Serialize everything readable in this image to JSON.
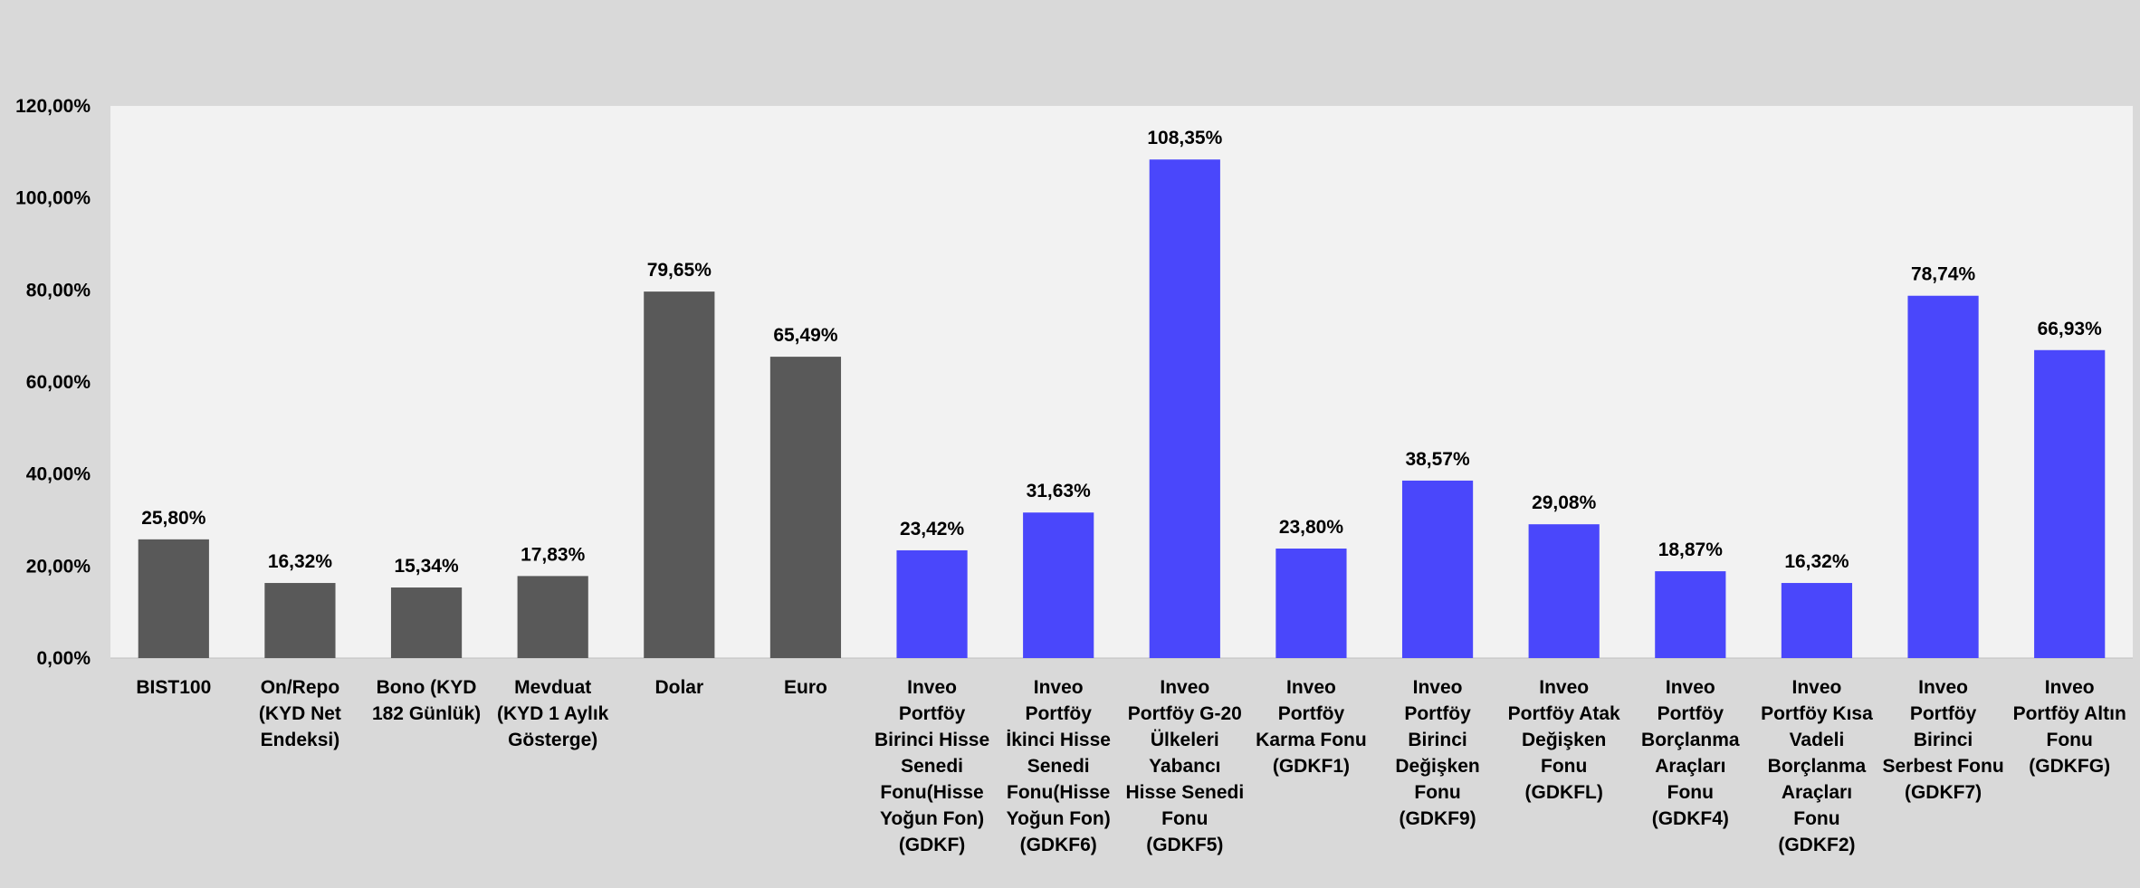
{
  "chart_data": {
    "type": "bar",
    "categories": [
      [
        "BIST100"
      ],
      [
        "On/Repo",
        "(KYD Net",
        "Endeksi)"
      ],
      [
        "Bono (KYD",
        "182 Günlük)"
      ],
      [
        "Mevduat",
        "(KYD 1 Aylık",
        "Gösterge)"
      ],
      [
        "Dolar"
      ],
      [
        "Euro"
      ],
      [
        "Inveo",
        "Portföy",
        "Birinci Hisse",
        "Senedi",
        "Fonu(Hisse",
        "Yoğun Fon)",
        "(GDKF)"
      ],
      [
        "Inveo",
        "Portföy",
        "İkinci Hisse",
        "Senedi",
        "Fonu(Hisse",
        "Yoğun Fon)",
        "(GDKF6)"
      ],
      [
        "Inveo",
        "Portföy G-20",
        "Ülkeleri",
        "Yabancı",
        "Hisse Senedi",
        "Fonu",
        "(GDKF5)"
      ],
      [
        "Inveo",
        "Portföy",
        "Karma Fonu",
        "(GDKF1)"
      ],
      [
        "Inveo",
        "Portföy",
        "Birinci",
        "Değişken",
        "Fonu",
        "(GDKF9)"
      ],
      [
        "Inveo",
        "Portföy Atak",
        "Değişken",
        "Fonu",
        "(GDKFL)"
      ],
      [
        "Inveo",
        "Portföy",
        "Borçlanma",
        "Araçları",
        "Fonu",
        "(GDKF4)"
      ],
      [
        "Inveo",
        "Portföy Kısa",
        "Vadeli",
        "Borçlanma",
        "Araçları",
        "Fonu",
        "(GDKF2)"
      ],
      [
        "Inveo",
        "Portföy",
        "Birinci",
        "Serbest Fonu",
        "(GDKF7)"
      ],
      [
        "Inveo",
        "Portföy Altın",
        "Fonu",
        "(GDKFG)"
      ]
    ],
    "values": [
      25.8,
      16.32,
      15.34,
      17.83,
      79.65,
      65.49,
      23.42,
      31.63,
      108.35,
      23.8,
      38.57,
      29.08,
      18.87,
      16.32,
      78.74,
      66.93
    ],
    "value_labels": [
      "25,80%",
      "16,32%",
      "15,34%",
      "17,83%",
      "79,65%",
      "65,49%",
      "23,42%",
      "31,63%",
      "108,35%",
      "23,80%",
      "38,57%",
      "29,08%",
      "18,87%",
      "16,32%",
      "78,74%",
      "66,93%"
    ],
    "groups": [
      "benchmark",
      "benchmark",
      "benchmark",
      "benchmark",
      "benchmark",
      "benchmark",
      "fund",
      "fund",
      "fund",
      "fund",
      "fund",
      "fund",
      "fund",
      "fund",
      "fund",
      "fund"
    ],
    "colors": {
      "benchmark": "#595959",
      "fund": "#4a47fb",
      "plot_bg": "#f2f2f2",
      "page_bg": "#d9d9d9"
    },
    "ylim": [
      0,
      120
    ],
    "yticks": [
      0,
      20,
      40,
      60,
      80,
      100,
      120
    ],
    "ytick_labels": [
      "0,00%",
      "20,00%",
      "40,00%",
      "60,00%",
      "80,00%",
      "100,00%",
      "120,00%"
    ],
    "grid": false,
    "title": "",
    "xlabel": "",
    "ylabel": ""
  }
}
